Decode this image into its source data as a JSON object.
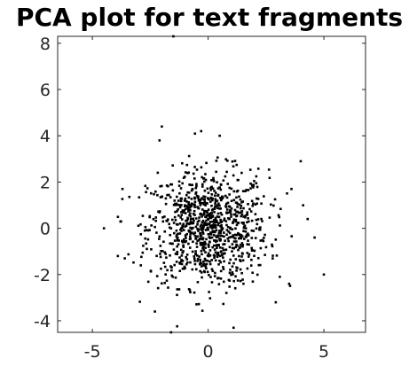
{
  "chart_data": {
    "type": "scatter",
    "title": "PCA plot for text fragments",
    "xlabel": "",
    "ylabel": "",
    "xlim": [
      -6.5,
      6.8
    ],
    "ylim": [
      -4.5,
      8.3
    ],
    "xticks": [
      -5,
      0,
      5
    ],
    "yticks": [
      -4,
      -2,
      0,
      2,
      4,
      6,
      8
    ],
    "grid": false,
    "legend": "none",
    "marker_color": "#000000",
    "points": {
      "count": 1000,
      "center": [
        0,
        0
      ],
      "spread_x": 1.3,
      "spread_y": 1.25,
      "notable": [
        [
          -1.5,
          8.3
        ],
        [
          -2.0,
          4.4
        ],
        [
          -2.1,
          3.8
        ],
        [
          -0.3,
          4.2
        ],
        [
          0.5,
          4.0
        ],
        [
          4.0,
          2.9
        ],
        [
          -4.5,
          0.0
        ],
        [
          5.0,
          -2.0
        ],
        [
          4.3,
          0.4
        ],
        [
          4.6,
          -0.4
        ],
        [
          -3.9,
          -1.2
        ],
        [
          -3.6,
          -1.3
        ],
        [
          -1.6,
          -4.5
        ],
        [
          1.1,
          -4.3
        ],
        [
          -2.3,
          -3.6
        ],
        [
          3.6,
          1.7
        ],
        [
          3.5,
          -2.4
        ],
        [
          -3.7,
          1.7
        ]
      ]
    }
  }
}
